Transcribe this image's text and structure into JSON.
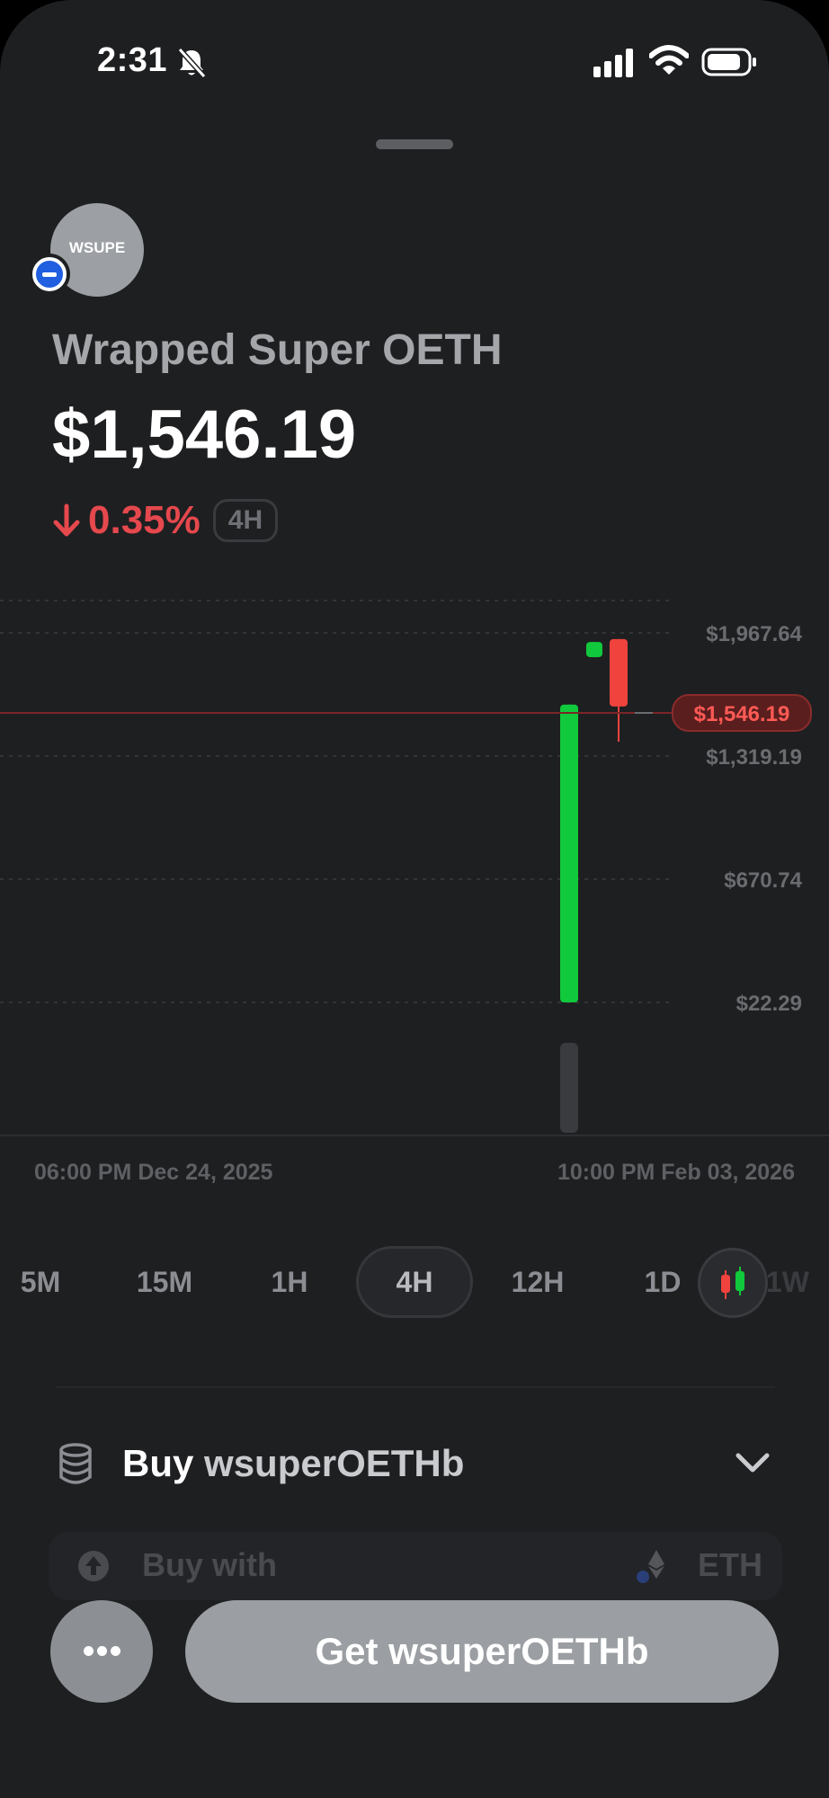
{
  "status_bar": {
    "time": "2:31",
    "icons": [
      "bell-slash-icon",
      "signal-icon",
      "wifi-icon",
      "battery-icon"
    ]
  },
  "token": {
    "avatar_text": "WSUPE",
    "chain_badge": "base-chain-icon",
    "name": "Wrapped Super OETH",
    "price": "$1,546.19",
    "change": "0.35%",
    "change_direction": "down",
    "range": "4H"
  },
  "chart_data": {
    "type": "candlestick",
    "y_ticks": [
      "$1,967.64",
      "$1,319.19",
      "$670.74",
      "$22.29"
    ],
    "current_price_label": "$1,546.19",
    "current_price": 1546.19,
    "x_labels": [
      "06:00 PM Dec 24, 2025",
      "10:00 PM Feb 03, 2026"
    ],
    "candles": [
      {
        "open": 22.29,
        "close": 1590,
        "high": 1590,
        "low": 22.29,
        "direction": "up"
      },
      {
        "open": 1840,
        "close": 1920,
        "high": 1920,
        "low": 1840,
        "direction": "up"
      },
      {
        "open": 1935,
        "close": 1580,
        "high": 1935,
        "low": 1395,
        "direction": "down"
      }
    ],
    "colors": {
      "up": "#11c93c",
      "down": "#f0433e",
      "price_line": "#7a2626"
    }
  },
  "timeframes": {
    "items": [
      "5M",
      "15M",
      "1H",
      "4H",
      "12H",
      "1D",
      "1W"
    ],
    "active": "4H"
  },
  "buy_section": {
    "buy_word": "Buy",
    "token_symbol": "wsuperOETHb",
    "buy_with_label": "Buy with",
    "pay_token": "ETH"
  },
  "actions": {
    "get_label": "Get wsuperOETHb",
    "more_icon": "more-dots-icon"
  },
  "colors": {
    "background": "#1e1f21",
    "negative": "#e5484d",
    "positive": "#11c93c",
    "button": "#9b9ea2"
  }
}
